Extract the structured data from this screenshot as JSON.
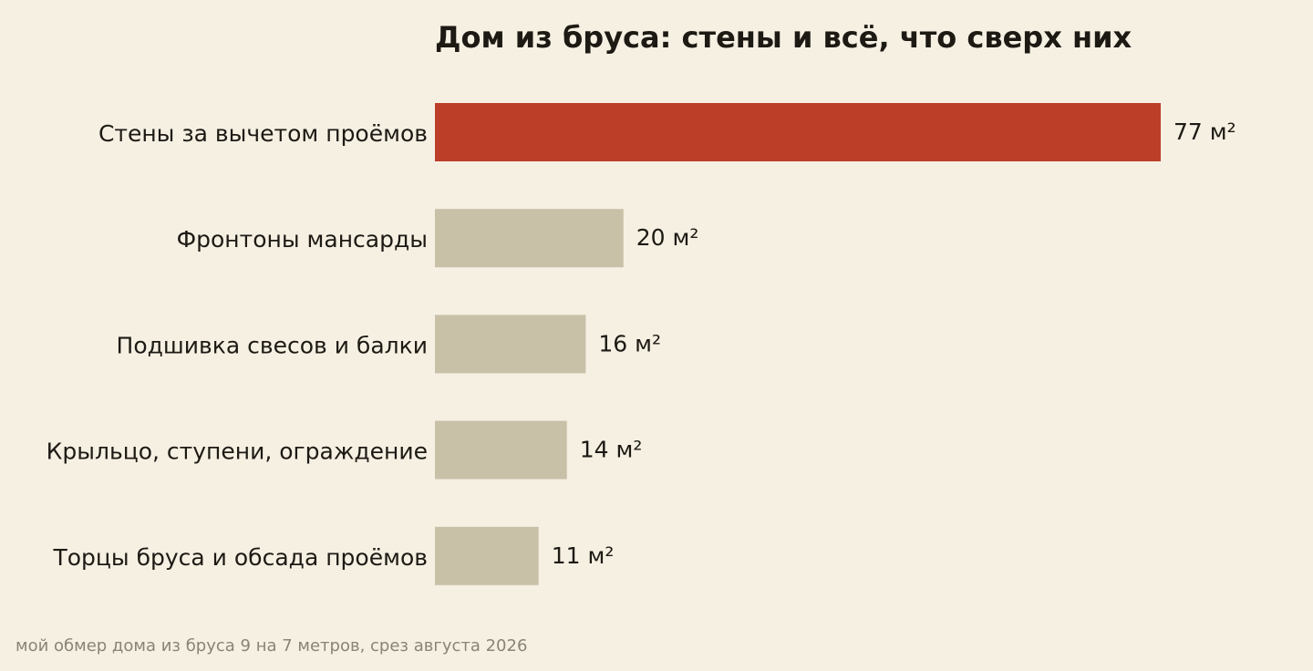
{
  "chart_data": {
    "type": "bar",
    "orientation": "horizontal",
    "title": "Дом из бруса: стены и всё, что сверх них",
    "categories": [
      "Стены за вычетом проёмов",
      "Фронтоны мансарды",
      "Подшивка свесов и балки",
      "Крыльцо, ступени, ограждение",
      "Торцы бруса и обсада проёмов"
    ],
    "values": [
      77,
      20,
      16,
      14,
      11
    ],
    "value_labels": [
      "77 м²",
      "20 м²",
      "16 м²",
      "14 м²",
      "11 м²"
    ],
    "unit": "м²",
    "xlim": [
      0,
      77
    ],
    "grid": false,
    "legend": "none",
    "colors": {
      "highlight": "#bc3e28",
      "default": "#c9c0a8",
      "background": "#f6f0e3"
    },
    "highlight_index": 0
  },
  "source_note": "мой обмер дома из бруса 9 на 7 метров, срез августа 2026"
}
